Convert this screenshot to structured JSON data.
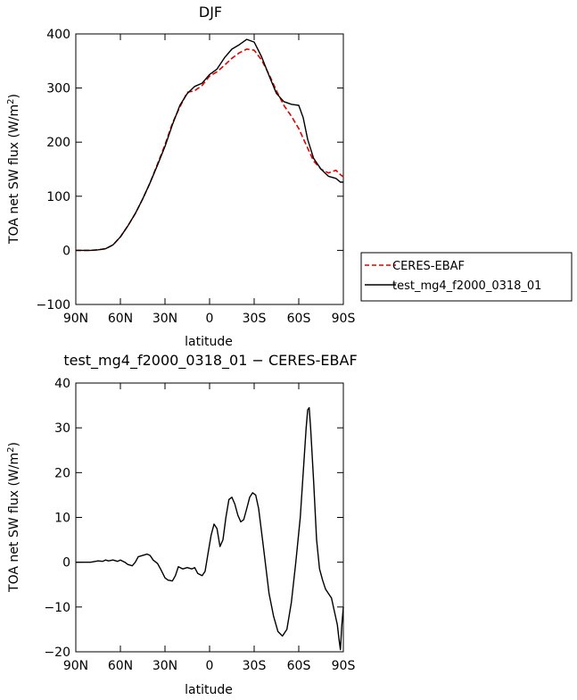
{
  "chart_data": [
    {
      "type": "line",
      "title": "DJF",
      "xlabel": "latitude",
      "ylabel": "TOA net SW flux (W/m²)",
      "ylabel_main": "TOA net SW flux (W/m",
      "ylabel_sup": "2",
      "ylabel_close": ")",
      "xlim": [
        90,
        -90
      ],
      "ylim": [
        -100,
        400
      ],
      "xticks": [
        90,
        60,
        30,
        0,
        -30,
        -60,
        -90
      ],
      "xticklabels": [
        "90N",
        "60N",
        "30N",
        "0",
        "30S",
        "60S",
        "90S"
      ],
      "yticks": [
        -100,
        0,
        100,
        200,
        300,
        400
      ],
      "yticklabels": [
        "−100",
        "0",
        "100",
        "200",
        "300",
        "400"
      ],
      "legend": {
        "placement": "right",
        "entries": [
          {
            "label": "CERES-EBAF",
            "color": "#e00000",
            "dash": "dashed"
          },
          {
            "label": "test_mg4_f2000_0318_01",
            "color": "#000000",
            "dash": "solid"
          }
        ]
      },
      "series": [
        {
          "name": "CERES-EBAF",
          "color": "#e00000",
          "dash": "dashed",
          "x": [
            90,
            80,
            75,
            70,
            65,
            60,
            55,
            50,
            45,
            40,
            35,
            30,
            25,
            20,
            15,
            10,
            5,
            0,
            -5,
            -10,
            -15,
            -20,
            -25,
            -30,
            -35,
            -40,
            -45,
            -50,
            -55,
            -60,
            -65,
            -70,
            -75,
            -80,
            -85,
            -88,
            -90
          ],
          "y": [
            0,
            0,
            1,
            3,
            10,
            25,
            45,
            68,
            95,
            125,
            160,
            195,
            235,
            265,
            292,
            295,
            305,
            322,
            330,
            342,
            355,
            365,
            372,
            370,
            352,
            325,
            295,
            268,
            248,
            225,
            195,
            165,
            150,
            143,
            148,
            140,
            136
          ]
        },
        {
          "name": "test_mg4_f2000_0318_01",
          "color": "#000000",
          "dash": "solid",
          "x": [
            90,
            80,
            75,
            70,
            65,
            60,
            55,
            50,
            45,
            40,
            35,
            30,
            25,
            20,
            15,
            10,
            5,
            0,
            -5,
            -10,
            -15,
            -20,
            -25,
            -30,
            -35,
            -40,
            -45,
            -50,
            -55,
            -60,
            -63,
            -66,
            -70,
            -75,
            -80,
            -85,
            -88,
            -90
          ],
          "y": [
            0,
            0,
            1,
            3,
            10,
            25,
            45,
            68,
            95,
            125,
            158,
            192,
            232,
            268,
            290,
            303,
            309,
            325,
            335,
            356,
            372,
            380,
            390,
            385,
            358,
            323,
            290,
            275,
            270,
            268,
            245,
            205,
            170,
            150,
            137,
            133,
            126,
            126
          ]
        }
      ]
    },
    {
      "type": "line",
      "title": "test_mg4_f2000_0318_01 − CERES-EBAF",
      "xlabel": "latitude",
      "ylabel": "TOA net SW flux (W/m²)",
      "ylabel_main": "TOA net SW flux (W/m",
      "ylabel_sup": "2",
      "ylabel_close": ")",
      "xlim": [
        90,
        -90
      ],
      "ylim": [
        -20,
        40
      ],
      "xticks": [
        90,
        60,
        30,
        0,
        -30,
        -60,
        -90
      ],
      "xticklabels": [
        "90N",
        "60N",
        "30N",
        "0",
        "30S",
        "60S",
        "90S"
      ],
      "yticks": [
        -20,
        -10,
        0,
        10,
        20,
        30,
        40
      ],
      "yticklabels": [
        "−20",
        "−10",
        "0",
        "10",
        "20",
        "30",
        "40"
      ],
      "series": [
        {
          "color": "#000000",
          "dash": "solid",
          "x": [
            90,
            80,
            75,
            72,
            70,
            68,
            65,
            62,
            60,
            57,
            55,
            52,
            50,
            48,
            45,
            42,
            40,
            38,
            35,
            33,
            30,
            28,
            25,
            23,
            21,
            18,
            15,
            12,
            10,
            8,
            5,
            3,
            1,
            -1,
            -3,
            -5,
            -7,
            -9,
            -11,
            -13,
            -15,
            -17,
            -19,
            -21,
            -23,
            -25,
            -27,
            -29,
            -31,
            -33,
            -36,
            -40,
            -43,
            -46,
            -49,
            -52,
            -55,
            -58,
            -61,
            -63,
            -65,
            -66,
            -67,
            -68,
            -70,
            -72,
            -74,
            -76,
            -78,
            -80,
            -82,
            -84,
            -86,
            -87,
            -88,
            -89,
            -90
          ],
          "y": [
            0,
            0,
            0.3,
            0.2,
            0.5,
            0.3,
            0.5,
            0.2,
            0.5,
            0,
            -0.5,
            -0.8,
            0,
            1.2,
            1.5,
            1.8,
            1.5,
            0.5,
            -0.3,
            -1.5,
            -3.5,
            -4,
            -4.2,
            -3,
            -1,
            -1.5,
            -1.2,
            -1.5,
            -1.2,
            -2.5,
            -3,
            -2,
            2,
            6,
            8.5,
            7.5,
            3.5,
            5,
            10,
            14,
            14.5,
            13,
            10.5,
            9,
            9.5,
            12,
            14.5,
            15.5,
            15,
            12,
            4,
            -7,
            -12,
            -15.5,
            -16.5,
            -15,
            -9,
            0,
            10,
            20,
            30,
            34,
            34.5,
            30,
            18,
            5,
            -1.5,
            -4,
            -6,
            -7,
            -8,
            -11,
            -14,
            -17,
            -19.5,
            -14,
            -10
          ]
        }
      ]
    }
  ]
}
